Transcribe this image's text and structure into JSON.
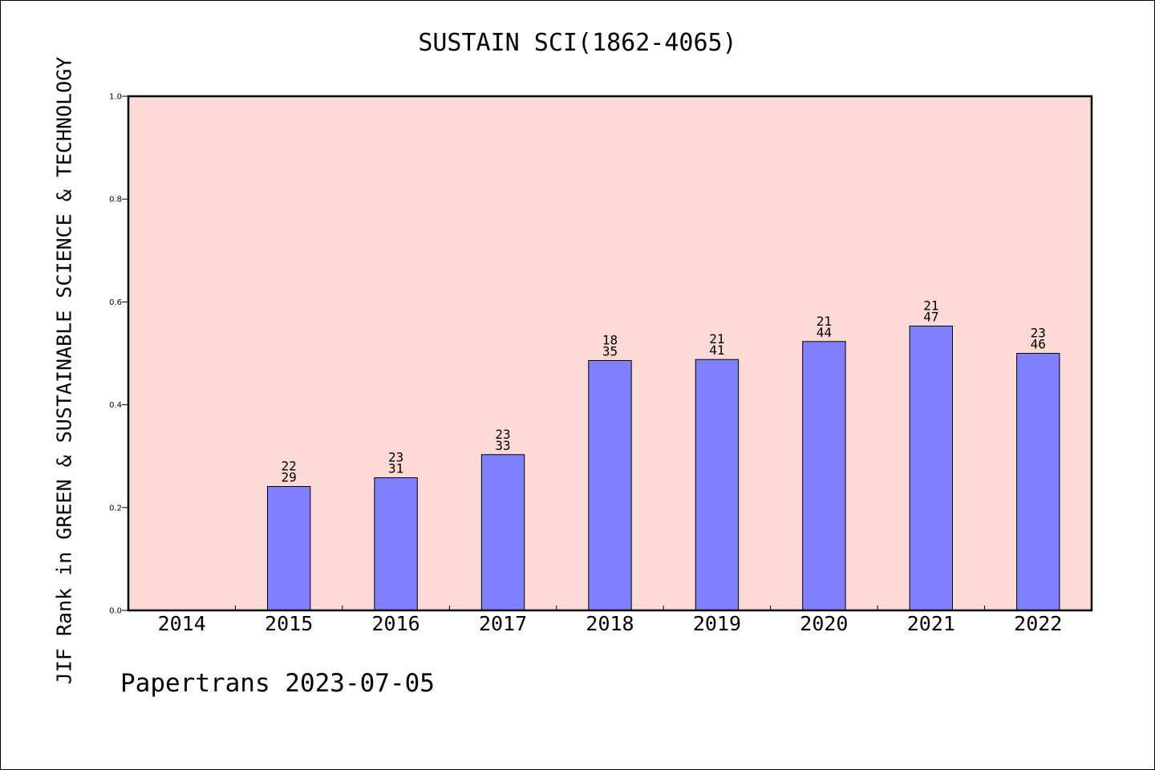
{
  "chart_data": {
    "type": "bar",
    "title": "SUSTAIN SCI(1862-4065)",
    "ylabel": "JIF Rank in GREEN & SUSTAINABLE SCIENCE & TECHNOLOGY",
    "xlabel": "",
    "ylim": [
      0.0,
      1.0
    ],
    "yticks": [
      "0.0",
      "0.2",
      "0.4",
      "0.6",
      "0.8",
      "1.0"
    ],
    "categories": [
      "2014",
      "2015",
      "2016",
      "2017",
      "2018",
      "2019",
      "2020",
      "2021",
      "2022"
    ],
    "values": [
      null,
      0.241,
      0.258,
      0.303,
      0.486,
      0.488,
      0.523,
      0.553,
      0.5
    ],
    "labels": [
      null,
      {
        "rank": "22",
        "total": "29"
      },
      {
        "rank": "23",
        "total": "31"
      },
      {
        "rank": "23",
        "total": "33"
      },
      {
        "rank": "18",
        "total": "35"
      },
      {
        "rank": "21",
        "total": "41"
      },
      {
        "rank": "21",
        "total": "44"
      },
      {
        "rank": "21",
        "total": "47"
      },
      {
        "rank": "23",
        "total": "46"
      }
    ],
    "colors": {
      "plot_bg": "#fddad6",
      "bar_fill": "#8080ff",
      "bar_edge": "#000000"
    },
    "grid": false,
    "legend": "none"
  },
  "footer": {
    "text": "Papertrans 2023-07-05"
  }
}
